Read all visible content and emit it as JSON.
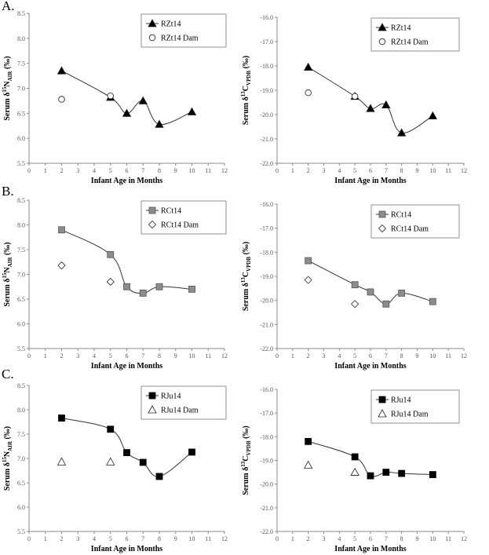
{
  "panels": [
    {
      "letter": "A."
    },
    {
      "letter": "B."
    },
    {
      "letter": "C."
    }
  ],
  "chart_data": [
    {
      "type": "line",
      "panel": "A.",
      "xlabel": "Infant Age in Months",
      "ylabel": "Serum δ15NAIR (‰)",
      "ylabel_parts": [
        "Serum δ",
        "15",
        "N",
        "AIR",
        " (‰)"
      ],
      "xlim": [
        0,
        12
      ],
      "ylim": [
        5.5,
        8.5
      ],
      "xticks": [
        0,
        1,
        2,
        3,
        4,
        5,
        6,
        7,
        8,
        9,
        10,
        11,
        12
      ],
      "yticks": [
        "5.5",
        "6.0",
        "6.5",
        "7.0",
        "7.5",
        "8.0",
        "8.5"
      ],
      "legend_position": "top-right",
      "series": [
        {
          "name": "RZt14",
          "marker": "triangle-filled",
          "line": true,
          "x": [
            2,
            5,
            6,
            7,
            8,
            10
          ],
          "y": [
            7.35,
            6.82,
            6.5,
            6.75,
            6.28,
            6.53
          ]
        },
        {
          "name": "RZt14 Dam",
          "marker": "circle-open",
          "line": false,
          "x": [
            2,
            5
          ],
          "y": [
            6.78,
            6.85
          ]
        }
      ]
    },
    {
      "type": "line",
      "panel": "A.",
      "xlabel": "Infant Age in Months",
      "ylabel": "Serum δ13CVPDB (‰)",
      "ylabel_parts": [
        "Serum δ",
        "13",
        "C",
        "VPDB",
        " (‰)"
      ],
      "xlim": [
        0,
        12
      ],
      "ylim": [
        -22.0,
        -16.0
      ],
      "xticks": [
        0,
        1,
        2,
        3,
        4,
        5,
        6,
        7,
        8,
        9,
        10,
        11,
        12
      ],
      "yticks": [
        "-22.0",
        "-21.0",
        "-20.0",
        "-19.0",
        "-18.0",
        "-17.0",
        "-16.0"
      ],
      "legend_position": "top-right",
      "series": [
        {
          "name": "RZt14",
          "marker": "triangle-filled",
          "line": true,
          "x": [
            2,
            5,
            6,
            7,
            8,
            10
          ],
          "y": [
            -18.05,
            -19.25,
            -19.75,
            -19.6,
            -20.75,
            -20.05
          ]
        },
        {
          "name": "RZt14 Dam",
          "marker": "circle-open",
          "line": false,
          "x": [
            2,
            5
          ],
          "y": [
            -19.1,
            -19.25
          ]
        }
      ]
    },
    {
      "type": "line",
      "panel": "B.",
      "xlabel": "Infant Age in Months",
      "ylabel": "Serum δ15NAIR (‰)",
      "ylabel_parts": [
        "Serum δ",
        "15",
        "N",
        "AIR",
        " (‰)"
      ],
      "xlim": [
        0,
        12
      ],
      "ylim": [
        5.5,
        8.5
      ],
      "xticks": [
        0,
        1,
        2,
        3,
        4,
        5,
        6,
        7,
        8,
        9,
        10,
        11,
        12
      ],
      "yticks": [
        "5.5",
        "6.0",
        "6.5",
        "7.0",
        "7.5",
        "8.0",
        "8.5"
      ],
      "legend_position": "top-right",
      "series": [
        {
          "name": "RCt14",
          "marker": "square-gray",
          "line": true,
          "x": [
            2,
            5,
            6,
            7,
            8,
            10
          ],
          "y": [
            7.9,
            7.4,
            6.75,
            6.62,
            6.75,
            6.7
          ]
        },
        {
          "name": "RCt14 Dam",
          "marker": "diamond-open",
          "line": false,
          "x": [
            2,
            5
          ],
          "y": [
            7.18,
            6.85
          ]
        }
      ]
    },
    {
      "type": "line",
      "panel": "B.",
      "xlabel": "Infant Age in Months",
      "ylabel": "Serum δ13CVPDB (‰)",
      "ylabel_parts": [
        "Serum δ",
        "13",
        "C",
        "VPDB",
        " (‰)"
      ],
      "xlim": [
        0,
        12
      ],
      "ylim": [
        -22.0,
        -16.0
      ],
      "xticks": [
        0,
        1,
        2,
        3,
        4,
        5,
        6,
        7,
        8,
        9,
        10,
        11,
        12
      ],
      "yticks": [
        "-22.0",
        "-21.0",
        "-20.0",
        "-19.0",
        "-18.0",
        "-17.0",
        "-16.0"
      ],
      "legend_position": "top-right",
      "series": [
        {
          "name": "RCt14",
          "marker": "square-gray",
          "line": true,
          "x": [
            2,
            5,
            6,
            7,
            8,
            10
          ],
          "y": [
            -18.35,
            -19.35,
            -19.65,
            -20.15,
            -19.7,
            -20.05
          ]
        },
        {
          "name": "RCt14 Dam",
          "marker": "diamond-open",
          "line": false,
          "x": [
            2,
            5
          ],
          "y": [
            -19.15,
            -20.15
          ]
        }
      ]
    },
    {
      "type": "line",
      "panel": "C.",
      "xlabel": "Infant Age in Months",
      "ylabel": "Serum δ15NAIR (‰)",
      "ylabel_parts": [
        "Serum δ",
        "15",
        "N",
        "AIR",
        " (‰)"
      ],
      "xlim": [
        0,
        12
      ],
      "ylim": [
        5.5,
        8.5
      ],
      "xticks": [
        0,
        1,
        2,
        3,
        4,
        5,
        6,
        7,
        8,
        9,
        10,
        11,
        12
      ],
      "yticks": [
        "5.5",
        "6.0",
        "6.5",
        "7.0",
        "7.5",
        "8.0",
        "8.5"
      ],
      "legend_position": "top-right",
      "series": [
        {
          "name": "RJu14",
          "marker": "square-black",
          "line": true,
          "x": [
            2,
            5,
            6,
            7,
            8,
            10
          ],
          "y": [
            7.83,
            7.6,
            7.12,
            6.92,
            6.63,
            7.13
          ]
        },
        {
          "name": "RJu14 Dam",
          "marker": "triangle-open",
          "line": false,
          "x": [
            2,
            5
          ],
          "y": [
            6.93,
            6.93
          ]
        }
      ]
    },
    {
      "type": "line",
      "panel": "C.",
      "xlabel": "Infant Age in Months",
      "ylabel": "Serum δ13CVPDB (‰)",
      "ylabel_parts": [
        "Serum δ",
        "13",
        "C",
        "VPDB",
        " (‰)"
      ],
      "xlim": [
        0,
        12
      ],
      "ylim": [
        -22.0,
        -16.0
      ],
      "xticks": [
        0,
        1,
        2,
        3,
        4,
        5,
        6,
        7,
        8,
        9,
        10,
        11,
        12
      ],
      "yticks": [
        "-22.0",
        "-21.0",
        "-20.0",
        "-19.0",
        "-18.0",
        "-17.0",
        "-16.0"
      ],
      "legend_position": "top-right",
      "series": [
        {
          "name": "RJu14",
          "marker": "square-black",
          "line": true,
          "x": [
            2,
            5,
            6,
            7,
            8,
            10
          ],
          "y": [
            -18.2,
            -18.85,
            -19.65,
            -19.5,
            -19.55,
            -19.6
          ]
        },
        {
          "name": "RJu14 Dam",
          "marker": "triangle-open",
          "line": false,
          "x": [
            2,
            5
          ],
          "y": [
            -19.2,
            -19.5
          ]
        }
      ]
    }
  ]
}
